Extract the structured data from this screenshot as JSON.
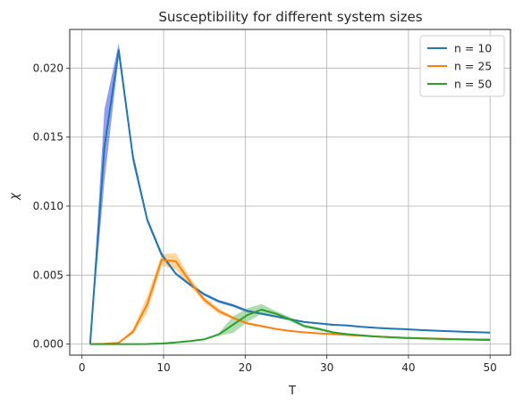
{
  "chart_data": {
    "type": "line",
    "title": "Susceptibility for different system sizes",
    "xlabel": "T",
    "ylabel": "χ",
    "xlim": [
      -1.5,
      52.5
    ],
    "ylim": [
      -0.0008,
      0.0228
    ],
    "xticks": [
      0,
      10,
      20,
      30,
      40,
      50
    ],
    "yticks": [
      0.0,
      0.005,
      0.01,
      0.015,
      0.02
    ],
    "ytick_labels": [
      "0.000",
      "0.005",
      "0.010",
      "0.015",
      "0.020"
    ],
    "grid": true,
    "legend_position": "top-right",
    "x": [
      1.0,
      2.75,
      4.5,
      6.25,
      8.0,
      9.75,
      11.5,
      13.25,
      15.0,
      16.75,
      18.5,
      20.25,
      22.0,
      23.75,
      25.5,
      27.25,
      29.0,
      30.75,
      32.5,
      34.25,
      36.0,
      37.75,
      39.5,
      41.25,
      43.0,
      44.75,
      46.5,
      48.25,
      50.0
    ],
    "series": [
      {
        "name": "n = 10",
        "color": "#1f77b4",
        "band_color": "#3a50e0",
        "values": [
          0.0,
          0.0143,
          0.0213,
          0.0135,
          0.009,
          0.0065,
          0.0051,
          0.0043,
          0.0036,
          0.0031,
          0.0028,
          0.0024,
          0.0022,
          0.002,
          0.0018,
          0.0016,
          0.0015,
          0.0014,
          0.00135,
          0.00125,
          0.00118,
          0.00112,
          0.00108,
          0.00103,
          0.00098,
          0.00094,
          0.0009,
          0.00087,
          0.00083
        ],
        "lower": [
          0.0,
          0.0118,
          0.0208,
          0.0131,
          0.0088,
          0.0063,
          0.005,
          0.0042,
          0.0035,
          0.003,
          0.0027,
          0.0023,
          0.00212,
          0.00193,
          0.00173,
          0.00154,
          0.00144,
          0.00134,
          0.0013,
          0.0012,
          0.00113,
          0.00107,
          0.00103,
          0.00098,
          0.00093,
          0.00089,
          0.00085,
          0.00082,
          0.00078
        ],
        "upper": [
          0.0,
          0.017,
          0.0218,
          0.0139,
          0.0092,
          0.0067,
          0.0052,
          0.0044,
          0.0037,
          0.0032,
          0.0029,
          0.0025,
          0.00228,
          0.00207,
          0.00187,
          0.00166,
          0.00156,
          0.00146,
          0.0014,
          0.0013,
          0.00123,
          0.00117,
          0.00113,
          0.00108,
          0.00103,
          0.00099,
          0.00095,
          0.00092,
          0.00088
        ]
      },
      {
        "name": "n = 25",
        "color": "#ff7f0e",
        "band_color": "#ffb74d",
        "values": [
          0.0,
          2e-05,
          0.0001,
          0.0009,
          0.0029,
          0.0061,
          0.006,
          0.0045,
          0.0032,
          0.0024,
          0.0019,
          0.0015,
          0.0013,
          0.0011,
          0.00095,
          0.00085,
          0.00078,
          0.00072,
          0.00066,
          0.0006,
          0.00055,
          0.0005,
          0.00046,
          0.00042,
          0.0004,
          0.00038,
          0.00036,
          0.00034,
          0.00033
        ],
        "lower": [
          0.0,
          0.0,
          8e-05,
          0.0007,
          0.0023,
          0.0057,
          0.0054,
          0.0042,
          0.003,
          0.0022,
          0.0018,
          0.0014,
          0.00122,
          0.00104,
          0.0009,
          0.0008,
          0.00074,
          0.00068,
          0.00062,
          0.00056,
          0.00051,
          0.00046,
          0.00042,
          0.00038,
          0.00036,
          0.00034,
          0.00032,
          0.0003,
          0.00029
        ],
        "upper": [
          0.0,
          4e-05,
          0.00012,
          0.0011,
          0.0035,
          0.0065,
          0.0066,
          0.0048,
          0.0034,
          0.0026,
          0.002,
          0.0016,
          0.00138,
          0.00116,
          0.001,
          0.0009,
          0.00082,
          0.00076,
          0.0007,
          0.00064,
          0.00059,
          0.00054,
          0.0005,
          0.00046,
          0.00044,
          0.00042,
          0.0004,
          0.00038,
          0.00037
        ]
      },
      {
        "name": "n = 50",
        "color": "#2ca02c",
        "band_color": "#6fc06f",
        "values": [
          0.0,
          0.0,
          0.0,
          0.0,
          1e-05,
          4e-05,
          0.00012,
          0.00022,
          0.00035,
          0.0007,
          0.0014,
          0.0021,
          0.0025,
          0.0022,
          0.0018,
          0.0013,
          0.0011,
          0.00085,
          0.00072,
          0.00063,
          0.00055,
          0.0005,
          0.00045,
          0.00042,
          0.00039,
          0.00036,
          0.00034,
          0.00031,
          0.0003
        ],
        "lower": [
          0.0,
          0.0,
          0.0,
          0.0,
          0.0,
          3e-05,
          0.0001,
          0.0002,
          0.00032,
          0.0006,
          0.0008,
          0.0016,
          0.0022,
          0.002,
          0.00165,
          0.0012,
          0.001,
          0.00078,
          0.00066,
          0.00058,
          0.0005,
          0.00045,
          0.0004,
          0.00037,
          0.00034,
          0.00031,
          0.00029,
          0.00026,
          0.00025
        ],
        "upper": [
          0.0,
          0.0,
          0.0,
          0.0,
          2e-05,
          5e-05,
          0.00014,
          0.00024,
          0.00038,
          0.0008,
          0.002,
          0.0026,
          0.0029,
          0.0024,
          0.00195,
          0.0014,
          0.0012,
          0.00092,
          0.00078,
          0.00068,
          0.0006,
          0.00055,
          0.0005,
          0.00047,
          0.00044,
          0.00041,
          0.00039,
          0.00036,
          0.00035
        ]
      }
    ]
  }
}
